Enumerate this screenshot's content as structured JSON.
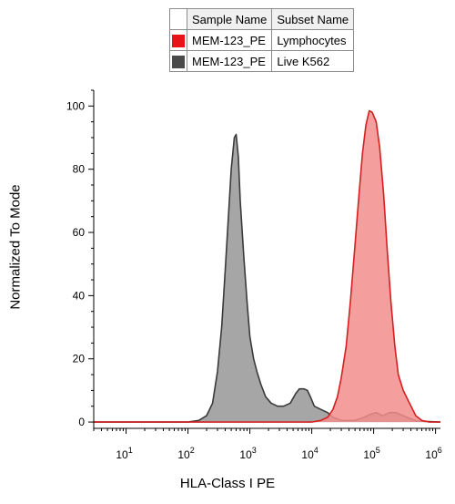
{
  "chart_data": {
    "type": "area",
    "xlabel": "HLA-Class I PE",
    "ylabel": "Normalized To Mode",
    "xscale": "log",
    "xlim": [
      3,
      1200000
    ],
    "ylim": [
      -2,
      105
    ],
    "legend_position": "top",
    "y_ticks": [
      {
        "value": 0,
        "label": "0"
      },
      {
        "value": 20,
        "label": "20"
      },
      {
        "value": 40,
        "label": "40"
      },
      {
        "value": 60,
        "label": "60"
      },
      {
        "value": 80,
        "label": "80"
      },
      {
        "value": 100,
        "label": "100"
      }
    ],
    "x_ticks": [
      {
        "value": 10,
        "base": "10",
        "exp": "1"
      },
      {
        "value": 100,
        "base": "10",
        "exp": "2"
      },
      {
        "value": 1000,
        "base": "10",
        "exp": "3"
      },
      {
        "value": 10000,
        "base": "10",
        "exp": "4"
      },
      {
        "value": 100000,
        "base": "10",
        "exp": "5"
      },
      {
        "value": 1000000,
        "base": "10",
        "exp": "6"
      }
    ],
    "legend_headers": [
      "Sample Name",
      "Subset Name"
    ],
    "series": [
      {
        "sample": "MEM-123_PE",
        "subset": "Live K562",
        "fill": "#a6a6a6",
        "stroke": "#3a3a3a",
        "points": [
          [
            3,
            0
          ],
          [
            100,
            0
          ],
          [
            150,
            0.5
          ],
          [
            200,
            2
          ],
          [
            250,
            6
          ],
          [
            300,
            16
          ],
          [
            350,
            30
          ],
          [
            400,
            48
          ],
          [
            450,
            65
          ],
          [
            500,
            80
          ],
          [
            560,
            90
          ],
          [
            600,
            91
          ],
          [
            650,
            84
          ],
          [
            700,
            70
          ],
          [
            800,
            52
          ],
          [
            900,
            38
          ],
          [
            1000,
            27
          ],
          [
            1150,
            20
          ],
          [
            1300,
            16
          ],
          [
            1500,
            12
          ],
          [
            1800,
            8
          ],
          [
            2200,
            6
          ],
          [
            2800,
            5
          ],
          [
            3500,
            5
          ],
          [
            4500,
            6
          ],
          [
            5500,
            9
          ],
          [
            6300,
            10.5
          ],
          [
            7500,
            10.5
          ],
          [
            8500,
            10
          ],
          [
            9500,
            8
          ],
          [
            11000,
            5
          ],
          [
            14000,
            4
          ],
          [
            18000,
            3
          ],
          [
            22000,
            1.5
          ],
          [
            30000,
            0.5
          ],
          [
            50000,
            0.5
          ],
          [
            70000,
            1.5
          ],
          [
            90000,
            2.5
          ],
          [
            110000,
            3
          ],
          [
            140000,
            2
          ],
          [
            180000,
            3
          ],
          [
            230000,
            3
          ],
          [
            300000,
            2
          ],
          [
            400000,
            1
          ],
          [
            500000,
            0.3
          ],
          [
            1200000,
            0
          ]
        ]
      },
      {
        "sample": "MEM-123_PE",
        "subset": "Lymphocytes",
        "fill": "#f28d8d",
        "stroke": "#d42020",
        "points": [
          [
            3,
            0
          ],
          [
            10000,
            0
          ],
          [
            14000,
            0.5
          ],
          [
            18000,
            1.5
          ],
          [
            22000,
            4
          ],
          [
            26000,
            8
          ],
          [
            30000,
            14
          ],
          [
            36000,
            24
          ],
          [
            42000,
            38
          ],
          [
            50000,
            56
          ],
          [
            58000,
            72
          ],
          [
            66000,
            85
          ],
          [
            75000,
            94
          ],
          [
            85000,
            98.5
          ],
          [
            95000,
            98
          ],
          [
            110000,
            95
          ],
          [
            125000,
            87
          ],
          [
            145000,
            72
          ],
          [
            165000,
            55
          ],
          [
            190000,
            38
          ],
          [
            220000,
            24
          ],
          [
            250000,
            15
          ],
          [
            300000,
            10
          ],
          [
            380000,
            6
          ],
          [
            480000,
            2
          ],
          [
            600000,
            0.5
          ],
          [
            800000,
            0
          ],
          [
            1200000,
            0
          ]
        ]
      }
    ]
  }
}
